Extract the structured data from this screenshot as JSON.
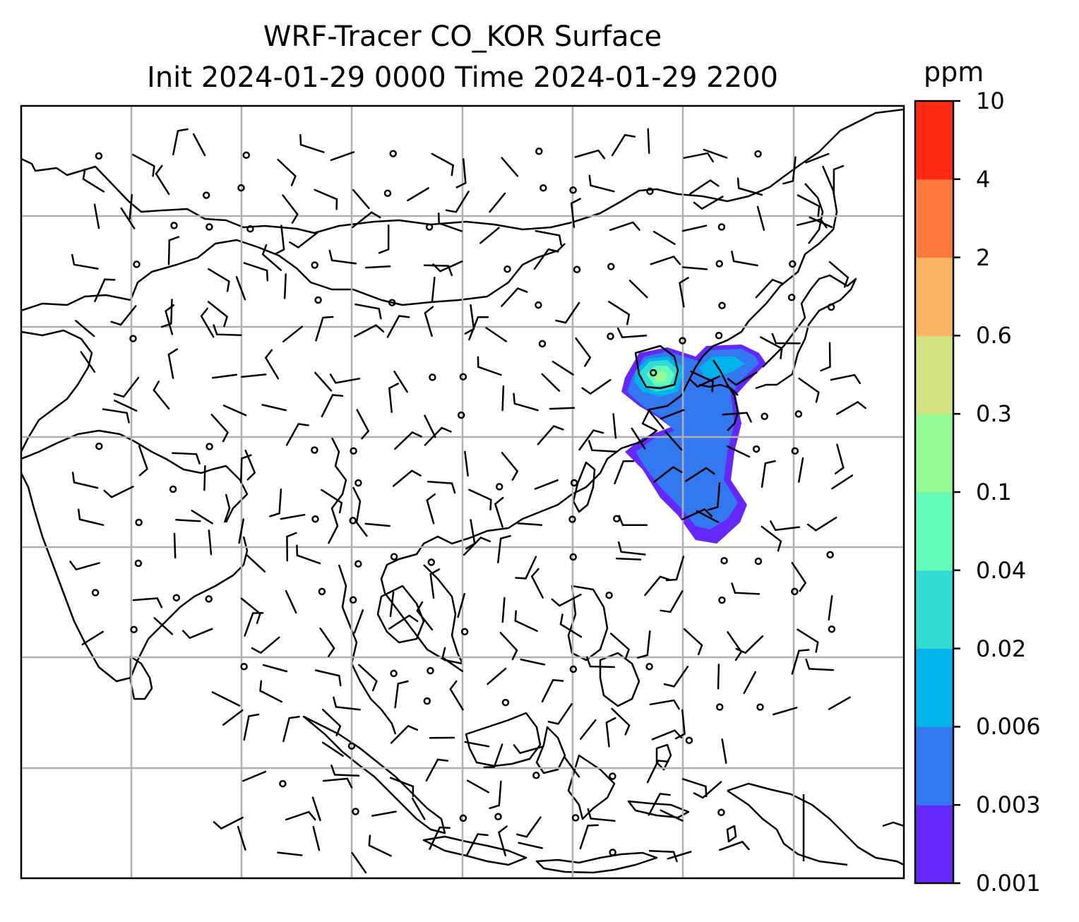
{
  "title": {
    "line1": "WRF-Tracer CO_KOR Surface",
    "line2": "Init 2024-01-29 0000 Time 2024-01-29 2200"
  },
  "colorbar": {
    "unit": "ppm",
    "tick_labels": [
      "0.001",
      "0.003",
      "0.006",
      "0.02",
      "0.04",
      "0.1",
      "0.3",
      "0.6",
      "2",
      "4",
      "10"
    ],
    "colors": [
      "#6428fa",
      "#3278f0",
      "#00b4eb",
      "#32dcd2",
      "#64faba",
      "#96fa96",
      "#d2e182",
      "#fab464",
      "#ff783c",
      "#ff2a14"
    ]
  },
  "map": {
    "gridlines": true,
    "wind_barbs": true,
    "plume_colors_used": [
      "#6428fa",
      "#3278f0",
      "#00b4eb",
      "#32dcd2",
      "#64faba",
      "#96fa96"
    ]
  }
}
